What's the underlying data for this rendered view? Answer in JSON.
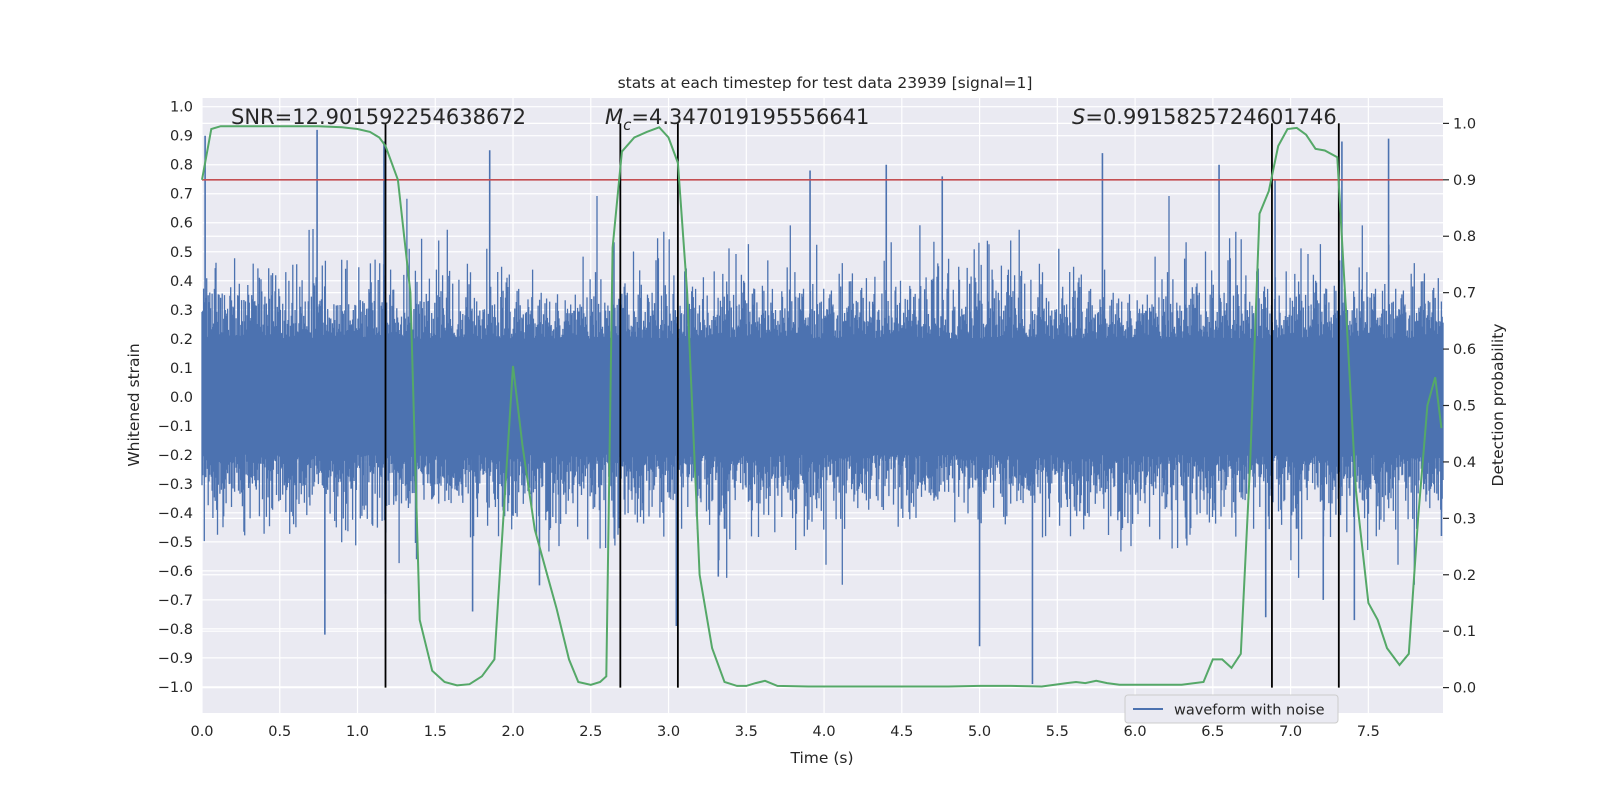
{
  "chart_data": {
    "type": "line",
    "title": "stats at each timestep for test data 23939 [signal=1]",
    "xlabel": "Time (s)",
    "ylabel_left": "Whitened strain",
    "ylabel_right": "Detection probability",
    "xlim": [
      0.0,
      7.98
    ],
    "ylim_left": [
      -1.09,
      1.03
    ],
    "ylim_right": [
      -0.045,
      1.045
    ],
    "x_ticks": [
      "0.0",
      "0.5",
      "1.0",
      "1.5",
      "2.0",
      "2.5",
      "3.0",
      "3.5",
      "4.0",
      "4.5",
      "5.0",
      "5.5",
      "6.0",
      "6.5",
      "7.0",
      "7.5"
    ],
    "y_ticks_left": [
      "1.0",
      "0.9",
      "0.8",
      "0.7",
      "0.6",
      "0.5",
      "0.4",
      "0.3",
      "0.2",
      "0.1",
      "0.0",
      "−0.1",
      "−0.2",
      "−0.3",
      "−0.4",
      "−0.5",
      "−0.6",
      "−0.7",
      "−0.8",
      "−0.9",
      "−1.0"
    ],
    "y_ticks_right": [
      "1.0",
      "0.9",
      "0.8",
      "0.7",
      "0.6",
      "0.5",
      "0.4",
      "0.3",
      "0.2",
      "0.1",
      "0.0"
    ],
    "annotations": {
      "snr": "SNR=12.901592254638672",
      "mc_symbol": "M",
      "mc_sub": "c",
      "mc_value": "=4.347019195556641",
      "s_symbol": "S",
      "s_value": "=0.9915825724601746"
    },
    "legend": {
      "label": "waveform with noise",
      "position": "lower-right"
    },
    "threshold": {
      "value": 0.9,
      "axis": "right",
      "color": "#c44e52"
    },
    "vertical_lines": [
      1.18,
      2.69,
      3.06,
      6.88,
      7.31
    ],
    "waveform": {
      "name": "waveform with noise",
      "color": "#4c72b0",
      "t_range": [
        0.0,
        7.98
      ],
      "samples": 1600,
      "envelope_typical": [
        -0.42,
        0.4
      ],
      "spikes": [
        {
          "t": 0.02,
          "v": 0.9
        },
        {
          "t": 0.74,
          "v": 0.92
        },
        {
          "t": 0.79,
          "v": -0.82
        },
        {
          "t": 1.17,
          "v": 0.88
        },
        {
          "t": 1.18,
          "v": -0.68
        },
        {
          "t": 1.38,
          "v": -0.56
        },
        {
          "t": 1.85,
          "v": 0.85
        },
        {
          "t": 1.74,
          "v": -0.74
        },
        {
          "t": 2.17,
          "v": -0.65
        },
        {
          "t": 3.05,
          "v": -0.79
        },
        {
          "t": 3.32,
          "v": -0.62
        },
        {
          "t": 3.91,
          "v": 0.78
        },
        {
          "t": 4.4,
          "v": 0.8
        },
        {
          "t": 4.76,
          "v": 0.76
        },
        {
          "t": 5.0,
          "v": -0.86
        },
        {
          "t": 5.34,
          "v": -0.99
        },
        {
          "t": 5.79,
          "v": 0.84
        },
        {
          "t": 6.54,
          "v": 0.8
        },
        {
          "t": 6.84,
          "v": -0.76
        },
        {
          "t": 6.9,
          "v": 0.75
        },
        {
          "t": 7.21,
          "v": -0.7
        },
        {
          "t": 7.33,
          "v": 0.88
        },
        {
          "t": 7.41,
          "v": -0.77
        },
        {
          "t": 7.63,
          "v": 0.89
        },
        {
          "t": 7.97,
          "v": -0.48
        }
      ]
    },
    "probability": {
      "name": "Detection probability",
      "color": "#55a868",
      "x": [
        0.0,
        0.06,
        0.12,
        0.2,
        0.3,
        0.45,
        0.6,
        0.75,
        0.9,
        1.0,
        1.08,
        1.14,
        1.18,
        1.26,
        1.34,
        1.4,
        1.48,
        1.56,
        1.64,
        1.72,
        1.8,
        1.88,
        2.0,
        2.06,
        2.14,
        2.22,
        2.28,
        2.36,
        2.42,
        2.5,
        2.56,
        2.6,
        2.64,
        2.7,
        2.78,
        2.86,
        2.94,
        3.0,
        3.06,
        3.12,
        3.2,
        3.28,
        3.36,
        3.44,
        3.5,
        3.56,
        3.62,
        3.7,
        3.9,
        4.2,
        4.5,
        4.8,
        5.0,
        5.2,
        5.4,
        5.56,
        5.62,
        5.68,
        5.75,
        5.82,
        5.9,
        6.1,
        6.3,
        6.44,
        6.5,
        6.56,
        6.62,
        6.68,
        6.74,
        6.8,
        6.86,
        6.92,
        6.98,
        7.04,
        7.1,
        7.16,
        7.22,
        7.3,
        7.36,
        7.42,
        7.5,
        7.56,
        7.62,
        7.7,
        7.76,
        7.82,
        7.88,
        7.93,
        7.97
      ],
      "y": [
        0.9,
        0.99,
        0.995,
        0.995,
        0.995,
        0.995,
        0.995,
        0.995,
        0.993,
        0.99,
        0.985,
        0.975,
        0.96,
        0.9,
        0.7,
        0.12,
        0.03,
        0.01,
        0.004,
        0.006,
        0.02,
        0.05,
        0.57,
        0.43,
        0.28,
        0.2,
        0.14,
        0.05,
        0.01,
        0.005,
        0.01,
        0.02,
        0.78,
        0.95,
        0.975,
        0.985,
        0.993,
        0.975,
        0.93,
        0.7,
        0.2,
        0.07,
        0.01,
        0.003,
        0.003,
        0.008,
        0.012,
        0.003,
        0.002,
        0.002,
        0.002,
        0.002,
        0.003,
        0.003,
        0.002,
        0.008,
        0.01,
        0.008,
        0.012,
        0.008,
        0.005,
        0.005,
        0.005,
        0.01,
        0.05,
        0.05,
        0.035,
        0.06,
        0.4,
        0.84,
        0.88,
        0.96,
        0.99,
        0.992,
        0.98,
        0.955,
        0.952,
        0.94,
        0.65,
        0.35,
        0.15,
        0.12,
        0.07,
        0.04,
        0.06,
        0.3,
        0.5,
        0.55,
        0.46
      ]
    }
  }
}
